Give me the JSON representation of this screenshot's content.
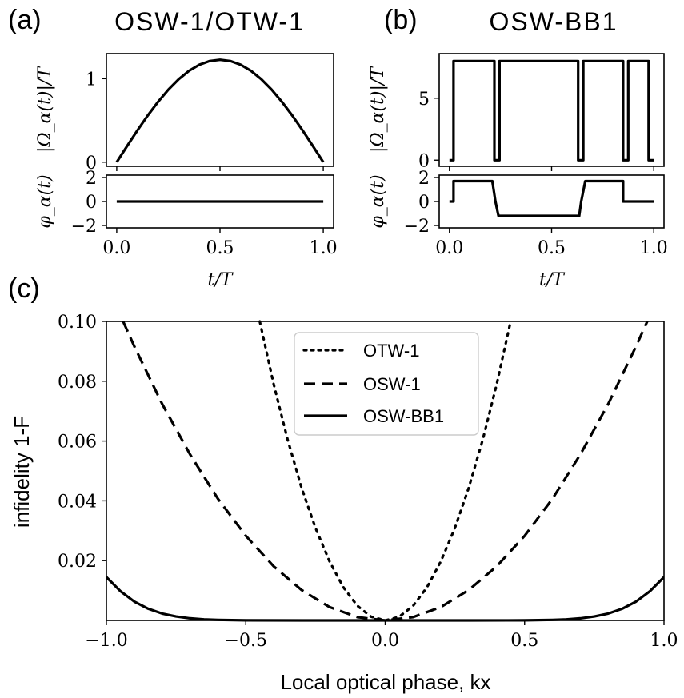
{
  "chart_data": [
    {
      "id": "a_top",
      "type": "line",
      "panel_label": "(a)",
      "title": "OSW-1/OTW-1",
      "ylabel": "|Ω_α(t)|/T",
      "xlim": [
        -0.05,
        1.05
      ],
      "ylim": [
        -0.05,
        1.3
      ],
      "yticks": [
        0,
        1
      ],
      "ytick_labels": [
        "0",
        "1"
      ],
      "xticks": [
        0,
        0.5,
        1.0
      ],
      "series": [
        {
          "x": [
            0,
            0.05,
            0.1,
            0.15,
            0.2,
            0.25,
            0.3,
            0.35,
            0.4,
            0.45,
            0.5,
            0.55,
            0.6,
            0.65,
            0.7,
            0.75,
            0.8,
            0.85,
            0.9,
            0.95,
            1.0
          ],
          "y": [
            0,
            0.192,
            0.38,
            0.558,
            0.722,
            0.869,
            0.994,
            1.094,
            1.167,
            1.211,
            1.226,
            1.211,
            1.167,
            1.094,
            0.994,
            0.869,
            0.722,
            0.558,
            0.38,
            0.192,
            0
          ]
        }
      ]
    },
    {
      "id": "a_bottom",
      "type": "line",
      "ylabel": "φ_α(t)",
      "xlabel": "t/T",
      "xlim": [
        -0.05,
        1.05
      ],
      "ylim": [
        -2.2,
        2.2
      ],
      "yticks": [
        -2,
        0,
        2
      ],
      "ytick_labels": [
        "−2",
        "0",
        "2"
      ],
      "xticks": [
        0,
        0.5,
        1.0
      ],
      "xtick_labels": [
        "0.0",
        "0.5",
        "1.0"
      ],
      "series": [
        {
          "x": [
            0,
            1.0
          ],
          "y": [
            0,
            0
          ]
        }
      ]
    },
    {
      "id": "b_top",
      "type": "line",
      "panel_label": "(b)",
      "title": "OSW-BB1",
      "ylabel": "|Ω_α(t)|/T",
      "xlim": [
        -0.05,
        1.05
      ],
      "ylim": [
        -0.5,
        8.6
      ],
      "yticks": [
        0,
        5
      ],
      "ytick_labels": [
        "0",
        "5"
      ],
      "xticks": [
        0,
        0.5,
        1.0
      ],
      "series": [
        {
          "x": [
            0,
            0.02,
            0.02,
            0.22,
            0.22,
            0.245,
            0.245,
            0.63,
            0.63,
            0.655,
            0.655,
            0.85,
            0.85,
            0.875,
            0.875,
            0.975,
            0.975,
            1.0
          ],
          "y": [
            0,
            0,
            8,
            8,
            0,
            0,
            8,
            8,
            0,
            0,
            8,
            8,
            0,
            0,
            8,
            8,
            0,
            0
          ]
        }
      ]
    },
    {
      "id": "b_bottom",
      "type": "line",
      "ylabel": "φ_α(t)",
      "xlabel": "t/T",
      "xlim": [
        -0.05,
        1.05
      ],
      "ylim": [
        -2.2,
        2.2
      ],
      "yticks": [
        -2,
        0,
        2
      ],
      "ytick_labels": [
        "−2",
        "0",
        "2"
      ],
      "xticks": [
        0,
        0.5,
        1.0
      ],
      "xtick_labels": [
        "0.0",
        "0.5",
        "1.0"
      ],
      "series": [
        {
          "x": [
            0,
            0.02,
            0.02,
            0.21,
            0.21,
            0.225,
            0.225,
            0.24,
            0.24,
            0.635,
            0.635,
            0.645,
            0.645,
            0.665,
            0.665,
            0.85,
            0.85,
            1.0
          ],
          "y": [
            0,
            0,
            1.7,
            1.7,
            1.7,
            0,
            0,
            -1.2,
            -1.2,
            -1.2,
            -1.2,
            0,
            0,
            1.7,
            1.7,
            1.7,
            0,
            0
          ]
        }
      ]
    },
    {
      "id": "c",
      "type": "line",
      "panel_label": "(c)",
      "xlabel": "Local optical phase, kx",
      "ylabel": "infidelity 1-F",
      "xlim": [
        -1.0,
        1.0
      ],
      "ylim": [
        0,
        0.1
      ],
      "xticks": [
        -1.0,
        -0.5,
        0,
        0.5,
        1.0
      ],
      "xtick_labels": [
        "−1.0",
        "−0.5",
        "0.0",
        "0.5",
        "1.0"
      ],
      "yticks": [
        0.02,
        0.04,
        0.06,
        0.08,
        0.1
      ],
      "ytick_labels": [
        "0.02",
        "0.04",
        "0.06",
        "0.08",
        "0.10"
      ],
      "legend": "upper center",
      "series": [
        {
          "name": "OTW-1",
          "style": "dotted",
          "x": [
            -0.45,
            -0.4,
            -0.35,
            -0.3,
            -0.25,
            -0.2,
            -0.15,
            -0.1,
            -0.05,
            0,
            0.05,
            0.1,
            0.15,
            0.2,
            0.25,
            0.3,
            0.35,
            0.4,
            0.45
          ],
          "y": [
            0.1,
            0.079,
            0.0605,
            0.0444,
            0.0309,
            0.0198,
            0.0111,
            0.0049,
            0.0012,
            0,
            0.0012,
            0.0049,
            0.0111,
            0.0198,
            0.0309,
            0.0444,
            0.0605,
            0.079,
            0.1
          ]
        },
        {
          "name": "OSW-1",
          "style": "dashed",
          "x": [
            -0.94,
            -0.9,
            -0.8,
            -0.7,
            -0.6,
            -0.5,
            -0.4,
            -0.3,
            -0.2,
            -0.1,
            0,
            0.1,
            0.2,
            0.3,
            0.4,
            0.5,
            0.6,
            0.7,
            0.8,
            0.9,
            0.94
          ],
          "y": [
            0.1,
            0.0917,
            0.0724,
            0.0555,
            0.0407,
            0.0283,
            0.0181,
            0.0102,
            0.0045,
            0.0011,
            0,
            0.0011,
            0.0045,
            0.0102,
            0.0181,
            0.0283,
            0.0407,
            0.0555,
            0.0724,
            0.0917,
            0.1
          ]
        },
        {
          "name": "OSW-BB1",
          "style": "solid",
          "x": [
            -1.0,
            -0.95,
            -0.9,
            -0.85,
            -0.8,
            -0.75,
            -0.7,
            -0.65,
            -0.6,
            -0.5,
            -0.3,
            0,
            0.3,
            0.5,
            0.6,
            0.65,
            0.7,
            0.75,
            0.8,
            0.85,
            0.9,
            0.95,
            1.0
          ],
          "y": [
            0.0145,
            0.0098,
            0.0063,
            0.0039,
            0.0023,
            0.0013,
            0.0007,
            0.00035,
            0.00018,
            4e-05,
            0,
            0,
            0,
            4e-05,
            0.00018,
            0.00035,
            0.0007,
            0.0013,
            0.0023,
            0.0039,
            0.0063,
            0.0098,
            0.0145
          ]
        }
      ]
    }
  ]
}
